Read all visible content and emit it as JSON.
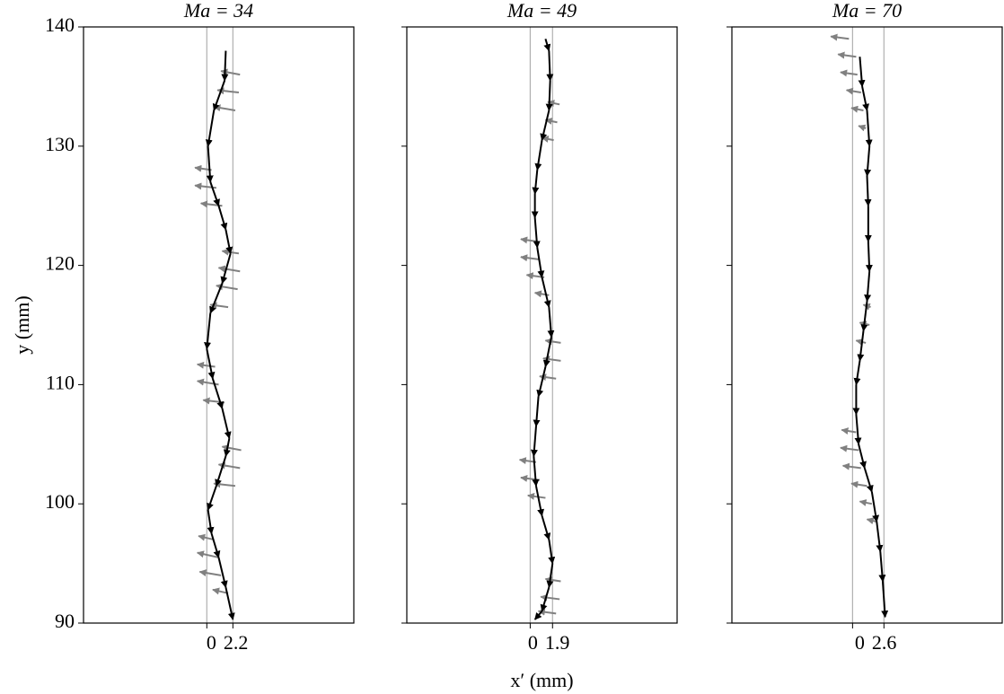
{
  "chart_data": [
    {
      "type": "quiver",
      "title": "Ma = 34",
      "ylabel": "y (mm)",
      "xlim": [
        -10.4,
        12.4
      ],
      "ylim": [
        90,
        140
      ],
      "xticks": [
        0,
        2.2
      ],
      "yticks": [
        90,
        100,
        110,
        120,
        130,
        140
      ],
      "path": {
        "color": "#000000",
        "x": [
          1.6,
          1.5,
          0.6,
          0.1,
          0.3,
          1.0,
          1.6,
          2.0,
          1.3,
          0.3,
          0.0,
          0.5,
          1.3,
          1.9,
          1.6,
          0.8,
          0.1,
          0.4,
          1.0,
          1.6,
          2.2
        ],
        "y": [
          138,
          135.5,
          133,
          130,
          127,
          125,
          123,
          121,
          118.5,
          116,
          113,
          110.5,
          108,
          105.5,
          104,
          101.5,
          99.5,
          97.5,
          95.5,
          93,
          90.3
        ]
      },
      "arrows": {
        "color": "#808080",
        "x": [
          2.8,
          2.7,
          2.4,
          0.4,
          0.8,
          1.3,
          2.7,
          2.8,
          2.6,
          1.8,
          0.7,
          1.0,
          1.5,
          2.9,
          2.8,
          2.4,
          0.6,
          1.0,
          1.2,
          1.8
        ],
        "y": [
          136,
          134.5,
          133,
          128,
          126.5,
          125,
          121,
          119.5,
          118,
          116.5,
          111.5,
          110,
          108.5,
          104.5,
          103,
          101.5,
          97,
          95.5,
          94,
          92.5
        ],
        "u": [
          -1.6,
          -1.8,
          -1.8,
          -1.4,
          -1.8,
          -1.8,
          -1.4,
          -1.8,
          -1.8,
          -1.5,
          -1.5,
          -1.8,
          -1.8,
          -1.6,
          -1.8,
          -1.8,
          -1.3,
          -1.8,
          -1.8,
          -1.3
        ],
        "v": [
          0.3,
          0.2,
          0.3,
          0.2,
          0.2,
          0.2,
          0.2,
          0.3,
          0.3,
          0.2,
          0.2,
          0.3,
          0.2,
          0.3,
          0.3,
          0.2,
          0.3,
          0.4,
          0.3,
          0.3
        ]
      }
    },
    {
      "type": "quiver",
      "title": "Ma = 49",
      "xlabel": "x′ (mm)",
      "xlim": [
        -10.5,
        12.5
      ],
      "ylim": [
        90,
        140
      ],
      "xticks": [
        0,
        1.9
      ],
      "path": {
        "color": "#000000",
        "x": [
          1.3,
          1.6,
          1.7,
          1.6,
          1.0,
          0.6,
          0.4,
          0.4,
          0.6,
          1.0,
          1.6,
          1.8,
          1.3,
          0.7,
          0.5,
          0.3,
          0.5,
          1.0,
          1.6,
          1.9,
          1.6,
          1.0,
          0.4
        ],
        "y": [
          139,
          138,
          135.5,
          133,
          130.5,
          128,
          126,
          124,
          121.5,
          119,
          116.5,
          114,
          111.5,
          109,
          106.5,
          104,
          101.5,
          99,
          97,
          95,
          93,
          91,
          90.3
        ]
      },
      "arrows": {
        "color": "#808080",
        "x": [
          2.5,
          2.3,
          2.0,
          0.6,
          0.8,
          1.2,
          1.6,
          2.6,
          2.6,
          2.2,
          0.5,
          0.8,
          1.3,
          2.6,
          2.5,
          2.2
        ],
        "y": [
          133.5,
          132,
          130.5,
          122,
          120.5,
          119,
          117.5,
          113.5,
          112,
          110.5,
          103.5,
          102,
          100.5,
          93.5,
          92,
          90.8
        ],
        "u": [
          -1.0,
          -1.0,
          -1.0,
          -1.4,
          -1.6,
          -1.5,
          -1.2,
          -1.3,
          -1.5,
          -1.4,
          -1.4,
          -1.6,
          -1.5,
          -1.3,
          -1.6,
          -1.5
        ],
        "v": [
          0.2,
          0.2,
          0.2,
          0.2,
          0.2,
          0.2,
          0.2,
          0.2,
          0.2,
          0.2,
          0.2,
          0.2,
          0.2,
          0.2,
          0.2,
          0.2
        ]
      }
    },
    {
      "type": "quiver",
      "title": "Ma = 70",
      "xlim": [
        -10.0,
        12.4
      ],
      "ylim": [
        90,
        140
      ],
      "xticks": [
        0,
        2.6
      ],
      "path": {
        "color": "#000000",
        "x": [
          0.6,
          0.8,
          1.2,
          1.4,
          1.2,
          1.3,
          1.3,
          1.4,
          1.2,
          0.9,
          0.6,
          0.3,
          0.3,
          0.5,
          1.0,
          1.6,
          2.0,
          2.3,
          2.5,
          2.7
        ],
        "y": [
          137.5,
          135,
          133,
          130,
          127.5,
          125,
          122,
          119.5,
          117,
          114.5,
          112,
          110,
          107.5,
          105,
          103,
          101,
          98.5,
          96,
          93.5,
          90.5
        ]
      },
      "arrows": {
        "color": "#808080",
        "x": [
          -0.3,
          0.3,
          0.4,
          0.7,
          0.9,
          1.1,
          1.5,
          1.4,
          1.1,
          0.3,
          0.5,
          0.7,
          1.2,
          1.6,
          2.0
        ],
        "y": [
          139,
          137.5,
          136,
          134.5,
          133,
          131.5,
          116.5,
          115,
          113.5,
          106,
          104.5,
          103,
          101.5,
          100,
          98.5
        ],
        "u": [
          -1.5,
          -1.5,
          -1.4,
          -1.2,
          -1.0,
          -0.6,
          -0.6,
          -0.8,
          -0.8,
          -1.2,
          -1.5,
          -1.5,
          -1.3,
          -1.0,
          -0.8
        ],
        "v": [
          0.2,
          0.2,
          0.2,
          0.2,
          0.2,
          0.2,
          0.2,
          0.2,
          0.2,
          0.2,
          0.2,
          0.2,
          0.2,
          0.2,
          0.2
        ]
      }
    }
  ]
}
